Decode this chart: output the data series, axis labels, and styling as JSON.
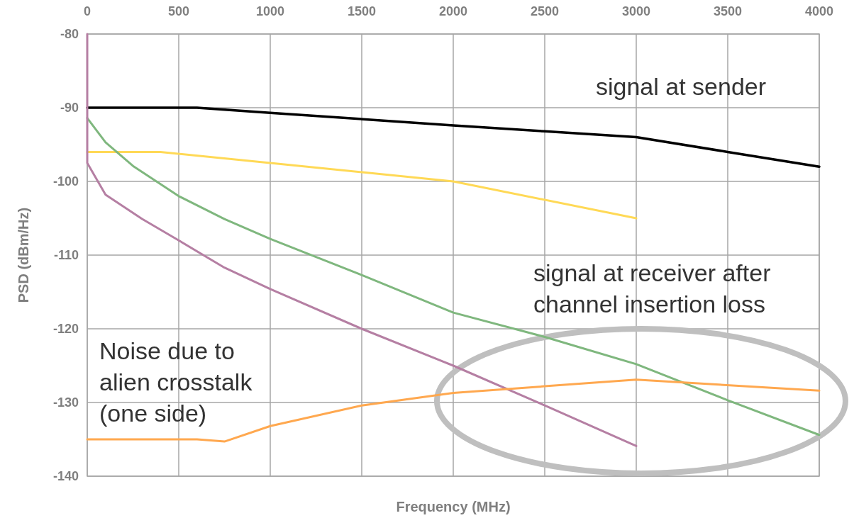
{
  "chart_data": {
    "type": "line",
    "xlabel": "Frequency (MHz)",
    "ylabel": "PSD (dBm/Hz)",
    "xlim": [
      0,
      4000
    ],
    "xticks": [
      0,
      500,
      1000,
      1500,
      2000,
      2500,
      3000,
      3500,
      4000
    ],
    "ylim": [
      -140,
      -80
    ],
    "yticks": [
      -140,
      -130,
      -120,
      -110,
      -100,
      -90,
      -80
    ],
    "grid": true,
    "marker": "none",
    "line_style": "solid",
    "series": [
      {
        "color": "#000000",
        "x": [
          0,
          600,
          1000,
          2000,
          2500,
          3000,
          3500,
          4000
        ],
        "values": [
          -90,
          -90,
          -90.7,
          -92.4,
          -93.2,
          -94,
          -96,
          -98
        ]
      },
      {
        "color": "#ffd956",
        "x": [
          0,
          400,
          1000,
          2000,
          3000
        ],
        "values": [
          -96,
          -96,
          -97.5,
          -100,
          -105
        ]
      },
      {
        "color": "#7fb77e",
        "x": [
          0,
          100,
          250,
          500,
          750,
          1000,
          1500,
          2000,
          2500,
          3000,
          3500,
          4000
        ],
        "values": [
          -91.4,
          -94.7,
          -97.9,
          -102,
          -105.1,
          -107.8,
          -112.7,
          -117.8,
          -121.1,
          -124.8,
          -129.7,
          -134.4
        ]
      },
      {
        "color": "#b57fa3",
        "x": [
          0,
          0,
          100,
          300,
          500,
          750,
          1000,
          1500,
          2000,
          2500,
          3000
        ],
        "values": [
          -80,
          -97.5,
          -101.8,
          -105.1,
          -108,
          -111.7,
          -114.6,
          -120,
          -125,
          -130.4,
          -135.9
        ]
      },
      {
        "color": "#ffa84f",
        "x": [
          0,
          600,
          750,
          1000,
          1500,
          2000,
          2500,
          3000,
          4000
        ],
        "values": [
          -135,
          -135,
          -135.3,
          -133.2,
          -130.4,
          -128.7,
          -127.8,
          -126.9,
          -128.4
        ]
      }
    ],
    "annotations": [
      "signal at sender",
      "signal at receiver after\nchannel insertion loss",
      "Noise due to\nalien crosstalk\n(one side)"
    ]
  }
}
